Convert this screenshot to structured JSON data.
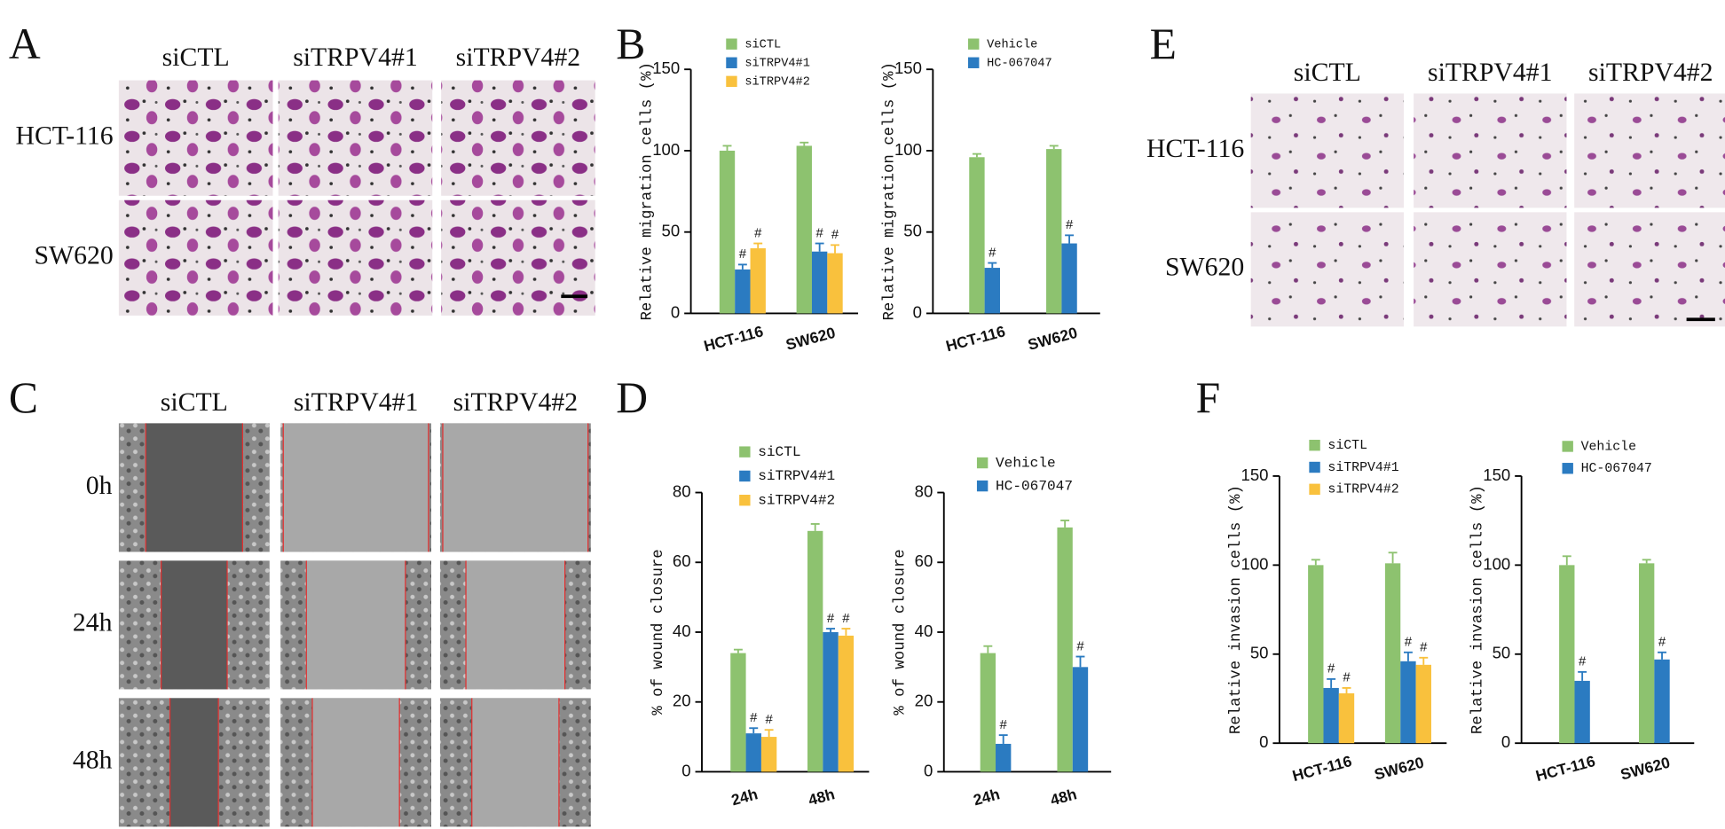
{
  "panel_letters": [
    "A",
    "B",
    "C",
    "D",
    "E",
    "F"
  ],
  "migration_images": {
    "columns": [
      "siCTL",
      "siTRPV4#1",
      "siTRPV4#2"
    ],
    "rows": [
      "HCT-116",
      "SW620"
    ]
  },
  "wound_images": {
    "columns": [
      "siCTL",
      "siTRPV4#1",
      "siTRPV4#2"
    ],
    "rows": [
      "0h",
      "24h",
      "48h"
    ]
  },
  "invasion_images": {
    "columns": [
      "siCTL",
      "siTRPV4#1",
      "siTRPV4#2"
    ],
    "rows": [
      "HCT-116",
      "SW620"
    ]
  },
  "chart_data": [
    {
      "type": "bar",
      "y_label": "Relative migration cells (%)",
      "categories": [
        "HCT-116",
        "SW620"
      ],
      "ylim": [
        0,
        150
      ],
      "yticks": [
        0,
        50,
        100,
        150
      ],
      "series": [
        {
          "name": "siCTL",
          "color": "#8dc26f",
          "values": [
            100,
            103
          ],
          "errors": [
            3,
            2
          ],
          "significance": [
            null,
            null
          ]
        },
        {
          "name": "siTRPV4#1",
          "color": "#2b7bc1",
          "values": [
            27,
            38
          ],
          "errors": [
            3,
            5
          ],
          "significance": [
            "#",
            "#"
          ]
        },
        {
          "name": "siTRPV4#2",
          "color": "#f9c13d",
          "values": [
            40,
            37
          ],
          "errors": [
            3,
            5
          ],
          "significance": [
            "#",
            "#"
          ]
        }
      ]
    },
    {
      "type": "bar",
      "y_label": "Relative migration cells (%)",
      "categories": [
        "HCT-116",
        "SW620"
      ],
      "ylim": [
        0,
        150
      ],
      "yticks": [
        0,
        50,
        100,
        150
      ],
      "series": [
        {
          "name": "Vehicle",
          "color": "#8dc26f",
          "values": [
            96,
            101
          ],
          "errors": [
            2,
            2
          ],
          "significance": [
            null,
            null
          ]
        },
        {
          "name": "HC-067047",
          "color": "#2b7bc1",
          "values": [
            28,
            43
          ],
          "errors": [
            3,
            5
          ],
          "significance": [
            "#",
            "#"
          ]
        }
      ]
    },
    {
      "type": "bar",
      "y_label": "% of wound closure",
      "categories": [
        "24h",
        "48h"
      ],
      "ylim": [
        0,
        80
      ],
      "yticks": [
        0,
        20,
        40,
        60,
        80
      ],
      "series": [
        {
          "name": "siCTL",
          "color": "#8dc26f",
          "values": [
            34,
            69
          ],
          "errors": [
            1,
            2
          ],
          "significance": [
            null,
            null
          ]
        },
        {
          "name": "siTRPV4#1",
          "color": "#2b7bc1",
          "values": [
            11,
            40
          ],
          "errors": [
            1.5,
            1
          ],
          "significance": [
            "#",
            "#"
          ]
        },
        {
          "name": "siTRPV4#2",
          "color": "#f9c13d",
          "values": [
            10,
            39
          ],
          "errors": [
            2,
            2
          ],
          "significance": [
            "#",
            "#"
          ]
        }
      ]
    },
    {
      "type": "bar",
      "y_label": "% of wound closure",
      "categories": [
        "24h",
        "48h"
      ],
      "ylim": [
        0,
        80
      ],
      "yticks": [
        0,
        20,
        40,
        60,
        80
      ],
      "series": [
        {
          "name": "Vehicle",
          "color": "#8dc26f",
          "values": [
            34,
            70
          ],
          "errors": [
            2,
            2
          ],
          "significance": [
            null,
            null
          ]
        },
        {
          "name": "HC-067047",
          "color": "#2b7bc1",
          "values": [
            8,
            30
          ],
          "errors": [
            2.5,
            3
          ],
          "significance": [
            "#",
            "#"
          ]
        }
      ]
    },
    {
      "type": "bar",
      "y_label": "Relative invasion cells (%)",
      "categories": [
        "HCT-116",
        "SW620"
      ],
      "ylim": [
        0,
        150
      ],
      "yticks": [
        0,
        50,
        100,
        150
      ],
      "series": [
        {
          "name": "siCTL",
          "color": "#8dc26f",
          "values": [
            100,
            101
          ],
          "errors": [
            3,
            6
          ],
          "significance": [
            null,
            null
          ]
        },
        {
          "name": "siTRPV4#1",
          "color": "#2b7bc1",
          "values": [
            31,
            46
          ],
          "errors": [
            5,
            5
          ],
          "significance": [
            "#",
            "#"
          ]
        },
        {
          "name": "siTRPV4#2",
          "color": "#f9c13d",
          "values": [
            28,
            44
          ],
          "errors": [
            3,
            4
          ],
          "significance": [
            "#",
            "#"
          ]
        }
      ]
    },
    {
      "type": "bar",
      "y_label": "Relative invasion cells (%)",
      "categories": [
        "HCT-116",
        "SW620"
      ],
      "ylim": [
        0,
        150
      ],
      "yticks": [
        0,
        50,
        100,
        150
      ],
      "series": [
        {
          "name": "Vehicle",
          "color": "#8dc26f",
          "values": [
            100,
            101
          ],
          "errors": [
            5,
            2
          ],
          "significance": [
            null,
            null
          ]
        },
        {
          "name": "HC-067047",
          "color": "#2b7bc1",
          "values": [
            35,
            47
          ],
          "errors": [
            5,
            4
          ],
          "significance": [
            "#",
            "#"
          ]
        }
      ]
    }
  ]
}
